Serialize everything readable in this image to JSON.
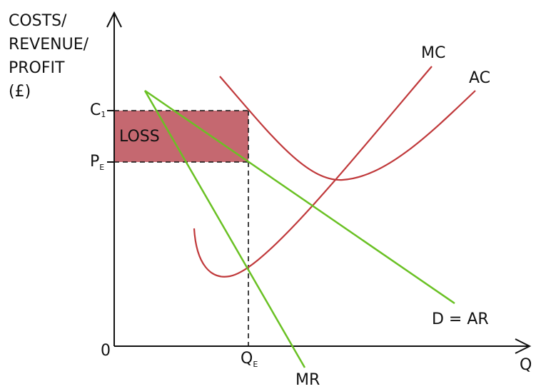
{
  "axes": {
    "y_label": [
      "COSTS/",
      "REVENUE/",
      "PROFIT",
      "(£)"
    ],
    "x_label": "Q",
    "origin": "0"
  },
  "levels": {
    "c1": {
      "main": "C",
      "sub": "1"
    },
    "pe": {
      "main": "P",
      "sub": "E"
    },
    "qe": {
      "main": "Q",
      "sub": "E"
    }
  },
  "area_label": "LOSS",
  "curves": {
    "mc": "MC",
    "ac": "AC",
    "demand": "D = AR",
    "mr": "MR"
  }
}
